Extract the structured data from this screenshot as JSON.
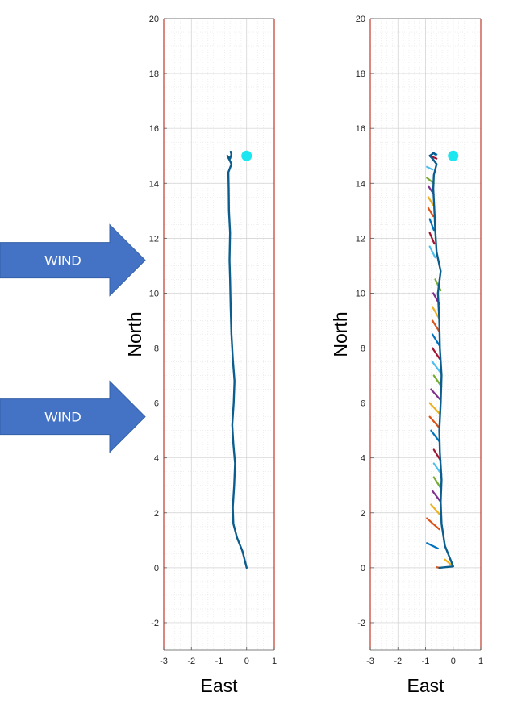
{
  "annotations": {
    "wind_arrows": [
      {
        "label": "WIND",
        "y": 11.2,
        "color": "#4472C4"
      },
      {
        "label": "WIND",
        "y": 5.5,
        "color": "#4472C4"
      }
    ]
  },
  "chart_data": [
    {
      "type": "line",
      "xlabel": "East",
      "ylabel": "North",
      "xlim": [
        -3,
        1
      ],
      "ylim": [
        -3,
        20
      ],
      "xticks": [
        "-3",
        "-2",
        "-1",
        "0",
        "1"
      ],
      "yticks": [
        "-2",
        "0",
        "2",
        "4",
        "6",
        "8",
        "10",
        "12",
        "14",
        "16",
        "18",
        "20"
      ],
      "grid": true,
      "minor_grid": true,
      "boundary_color": "#C0392B",
      "target": {
        "x": 0,
        "y": 15,
        "color": "#1CE6F0"
      },
      "series": [
        {
          "color": "#0B5D8E",
          "x": [
            0.0,
            -0.15,
            -0.35,
            -0.48,
            -0.5,
            -0.45,
            -0.42,
            -0.48,
            -0.52,
            -0.47,
            -0.44,
            -0.5,
            -0.55,
            -0.58,
            -0.6,
            -0.62,
            -0.6,
            -0.64,
            -0.65,
            -0.66,
            -0.55,
            -0.62,
            -0.7,
            -0.6,
            -0.55,
            -0.58
          ],
          "y": [
            0,
            0.6,
            1.1,
            1.6,
            2.2,
            3.0,
            3.8,
            4.5,
            5.2,
            6.0,
            6.8,
            7.6,
            8.5,
            9.5,
            10.5,
            11.2,
            12.2,
            13.0,
            13.8,
            14.4,
            14.7,
            14.85,
            15.0,
            14.9,
            15.05,
            15.15
          ]
        }
      ]
    },
    {
      "type": "line",
      "xlabel": "East",
      "ylabel": "North",
      "xlim": [
        -3,
        1
      ],
      "ylim": [
        -3,
        20
      ],
      "xticks": [
        "-3",
        "-2",
        "-1",
        "0",
        "1"
      ],
      "yticks": [
        "-2",
        "0",
        "2",
        "4",
        "6",
        "8",
        "10",
        "12",
        "14",
        "16",
        "18",
        "20"
      ],
      "grid": true,
      "minor_grid": true,
      "boundary_color": "#C0392B",
      "target": {
        "x": 0,
        "y": 15,
        "color": "#1CE6F0"
      },
      "series": [
        {
          "color": "#0B5D8E",
          "x": [
            -0.5,
            0.0,
            -0.3,
            -0.42,
            -0.45,
            -0.42,
            -0.48,
            -0.5,
            -0.45,
            -0.42,
            -0.48,
            -0.5,
            -0.55,
            -0.45,
            -0.6,
            -0.65,
            -0.68,
            -0.72,
            -0.7,
            -0.6,
            -0.75,
            -0.85,
            -0.7,
            -0.65
          ],
          "y": [
            0.0,
            0.05,
            0.8,
            1.6,
            2.4,
            3.2,
            4.2,
            5.0,
            6.0,
            7.0,
            8.0,
            9.0,
            10.0,
            10.8,
            11.5,
            12.3,
            13.0,
            13.8,
            14.3,
            14.7,
            14.9,
            15.0,
            15.1,
            15.05
          ]
        }
      ],
      "heading_segments": {
        "colors": [
          "#0072BD",
          "#D95319",
          "#EDB120",
          "#7E2F8E",
          "#77AC30",
          "#4DBEEE",
          "#A2142F"
        ],
        "segments": [
          {
            "x1": -0.55,
            "y1": 0.7,
            "x2": -0.95,
            "y2": 0.9
          },
          {
            "x1": -0.5,
            "y1": 1.4,
            "x2": -0.95,
            "y2": 1.8
          },
          {
            "x1": -0.45,
            "y1": 1.9,
            "x2": -0.8,
            "y2": 2.3
          },
          {
            "x1": -0.45,
            "y1": 2.4,
            "x2": -0.75,
            "y2": 2.8
          },
          {
            "x1": -0.45,
            "y1": 2.9,
            "x2": -0.7,
            "y2": 3.3
          },
          {
            "x1": -0.42,
            "y1": 3.4,
            "x2": -0.7,
            "y2": 3.8
          },
          {
            "x1": -0.45,
            "y1": 3.9,
            "x2": -0.7,
            "y2": 4.3
          },
          {
            "x1": -0.5,
            "y1": 4.6,
            "x2": -0.8,
            "y2": 5.0
          },
          {
            "x1": -0.5,
            "y1": 5.1,
            "x2": -0.85,
            "y2": 5.5
          },
          {
            "x1": -0.48,
            "y1": 5.6,
            "x2": -0.85,
            "y2": 6.0
          },
          {
            "x1": -0.45,
            "y1": 6.1,
            "x2": -0.8,
            "y2": 6.5
          },
          {
            "x1": -0.42,
            "y1": 6.6,
            "x2": -0.7,
            "y2": 7.0
          },
          {
            "x1": -0.45,
            "y1": 7.1,
            "x2": -0.75,
            "y2": 7.5
          },
          {
            "x1": -0.48,
            "y1": 7.6,
            "x2": -0.75,
            "y2": 8.0
          },
          {
            "x1": -0.5,
            "y1": 8.1,
            "x2": -0.75,
            "y2": 8.5
          },
          {
            "x1": -0.5,
            "y1": 8.6,
            "x2": -0.75,
            "y2": 9.0
          },
          {
            "x1": -0.52,
            "y1": 9.1,
            "x2": -0.75,
            "y2": 9.5
          },
          {
            "x1": -0.5,
            "y1": 9.6,
            "x2": -0.72,
            "y2": 10.0
          },
          {
            "x1": -0.45,
            "y1": 10.1,
            "x2": -0.65,
            "y2": 10.5
          },
          {
            "x1": -0.65,
            "y1": 11.3,
            "x2": -0.85,
            "y2": 11.7
          },
          {
            "x1": -0.68,
            "y1": 11.8,
            "x2": -0.85,
            "y2": 12.2
          },
          {
            "x1": -0.7,
            "y1": 12.3,
            "x2": -0.85,
            "y2": 12.7
          },
          {
            "x1": -0.72,
            "y1": 12.8,
            "x2": -0.9,
            "y2": 13.1
          },
          {
            "x1": -0.72,
            "y1": 13.2,
            "x2": -0.9,
            "y2": 13.5
          },
          {
            "x1": -0.7,
            "y1": 13.6,
            "x2": -0.9,
            "y2": 13.9
          },
          {
            "x1": -0.7,
            "y1": 14.0,
            "x2": -0.95,
            "y2": 14.2
          },
          {
            "x1": -0.75,
            "y1": 14.5,
            "x2": -0.95,
            "y2": 14.6
          },
          {
            "x1": -0.6,
            "y1": 14.9,
            "x2": -0.85,
            "y2": 15.0
          },
          {
            "x1": -0.6,
            "y1": 15.05,
            "x2": -0.75,
            "y2": 15.1
          },
          {
            "x1": -0.5,
            "y1": 0.0,
            "x2": -0.6,
            "y2": 0.02
          },
          {
            "x1": -0.3,
            "y1": 0.3,
            "x2": 0.0,
            "y2": 0.05
          }
        ]
      }
    }
  ]
}
